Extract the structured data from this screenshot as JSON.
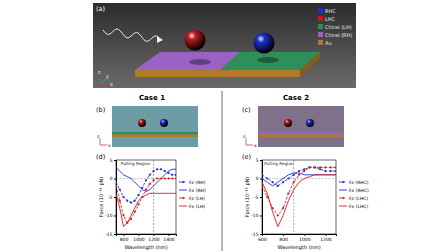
{
  "panel_labels": [
    "(a)",
    "(b)",
    "(c)",
    "(d)",
    "(e)"
  ],
  "schematic": {
    "legend": [
      {
        "name": "RHC",
        "color": "#1c2fd0"
      },
      {
        "name": "LHC",
        "color": "#c01c1c"
      },
      {
        "name": "Chiral (LH)",
        "color": "#2f8f5a"
      },
      {
        "name": "Chiral (RH)",
        "color": "#9a62c4"
      },
      {
        "name": "Au",
        "color": "#b07a2a"
      }
    ],
    "axes": [
      "z",
      "x",
      "y"
    ]
  },
  "cases": [
    "Case 1",
    "Case 2"
  ],
  "inset_axes": [
    "z",
    "x"
  ],
  "chart_data": [
    {
      "type": "line",
      "x_label": "Wavelength (nm)",
      "y_label": "Force (10⁻¹¹ pN)",
      "x": [
        700,
        750,
        800,
        850,
        900,
        950,
        1000,
        1050,
        1100,
        1150,
        1200,
        1250,
        1300,
        1350,
        1400,
        1450,
        1500
      ],
      "xlim": [
        700,
        1500
      ],
      "xticks": [
        800,
        1000,
        1200,
        1400
      ],
      "ylim": [
        -15,
        5
      ],
      "yticks": [
        -15,
        -10,
        -5,
        0,
        5
      ],
      "legend": "right",
      "annotations": [
        {
          "text": "Pulling Region",
          "x": 960,
          "y": 3.6
        }
      ],
      "vlines": [
        1200
      ],
      "hlines": [
        0
      ],
      "series": [
        {
          "name": "Fz (RH)",
          "color": "#1c2fd0",
          "line_style": "dashed",
          "marker": "circle",
          "values": [
            -1,
            -3,
            -5,
            -6,
            -6.5,
            -6,
            -4.5,
            -2.5,
            -0.5,
            1,
            2,
            2.5,
            2.5,
            2,
            1.5,
            1,
            1
          ]
        },
        {
          "name": "Fx (RH)",
          "color": "#1c2fd0",
          "line_style": "solid",
          "marker": "none",
          "values": [
            3,
            2,
            1,
            0.5,
            0,
            -1,
            -2,
            -3,
            -3.5,
            -3,
            -2,
            -1,
            0,
            1,
            2,
            2.5,
            2.5
          ]
        },
        {
          "name": "Fz (LH)",
          "color": "#d02020",
          "line_style": "dashed",
          "marker": "circle",
          "values": [
            -2,
            -6,
            -10,
            -12,
            -11,
            -9,
            -7,
            -5,
            -3,
            -1.5,
            -0.5,
            0,
            0,
            0,
            0,
            0,
            0
          ]
        },
        {
          "name": "Fx (LH)",
          "color": "#d02020",
          "line_style": "solid",
          "marker": "none",
          "values": [
            -4,
            -8,
            -13,
            -12,
            -10,
            -8,
            -6,
            -5,
            -4.5,
            -4,
            -4,
            -4,
            -4,
            -4,
            -4,
            -4,
            -4
          ]
        }
      ]
    },
    {
      "type": "line",
      "x_label": "Wavelength (nm)",
      "y_label": "Force (10⁻¹⁵ pN)",
      "x": [
        600,
        650,
        700,
        750,
        800,
        850,
        900,
        950,
        1000,
        1050,
        1100,
        1150,
        1200,
        1250,
        1300
      ],
      "xlim": [
        600,
        1300
      ],
      "xticks": [
        600,
        800,
        1000,
        1200
      ],
      "ylim": [
        -15,
        5
      ],
      "yticks": [
        -15,
        -10,
        -5,
        0,
        5
      ],
      "legend": "right",
      "annotations": [
        {
          "text": "Pulling Region",
          "x": 760,
          "y": 3.6
        }
      ],
      "vlines": [
        900
      ],
      "hlines": [
        0
      ],
      "series": [
        {
          "name": "Fz (RHC)",
          "color": "#1c2fd0",
          "line_style": "dashed",
          "marker": "circle",
          "values": [
            1,
            0,
            -1,
            -2,
            -1,
            0,
            1,
            2,
            2.5,
            3,
            3,
            2.5,
            2,
            2,
            2
          ]
        },
        {
          "name": "Fx (RHC)",
          "color": "#1c2fd0",
          "line_style": "solid",
          "marker": "none",
          "values": [
            0,
            -1,
            -2,
            -1,
            0,
            1,
            1.5,
            1.5,
            1,
            1,
            1,
            1,
            1,
            1,
            1
          ]
        },
        {
          "name": "Fz (LHC)",
          "color": "#d02020",
          "line_style": "dashed",
          "marker": "circle",
          "values": [
            -2,
            -5,
            -8,
            -10,
            -8,
            -4,
            -1,
            1,
            2,
            3,
            3,
            3,
            3,
            3,
            3
          ]
        },
        {
          "name": "Fx (LHC)",
          "color": "#d02020",
          "line_style": "solid",
          "marker": "none",
          "values": [
            -1,
            -4,
            -9,
            -13,
            -10,
            -6,
            -3,
            -1,
            0,
            0.5,
            1,
            1,
            1,
            1,
            1
          ]
        }
      ]
    }
  ]
}
